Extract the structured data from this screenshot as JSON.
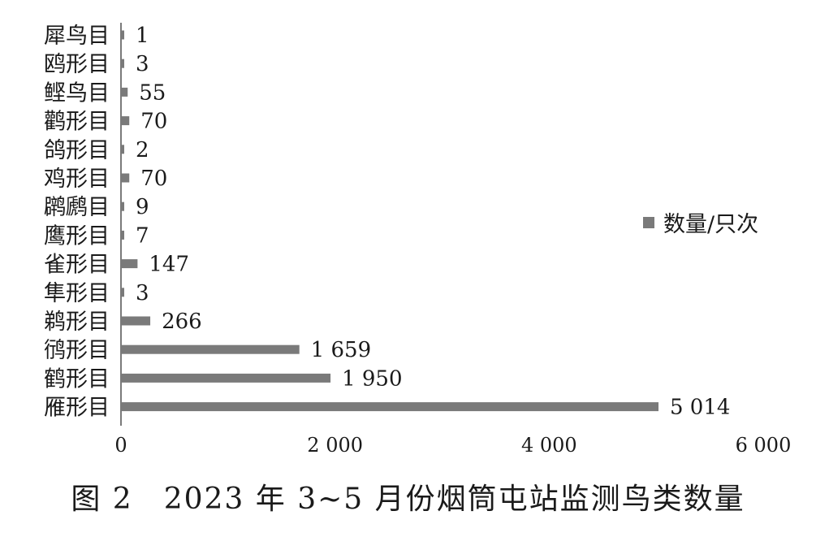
{
  "caption": "图 2　2023 年 3~5 月份烟筒屯站监测鸟类数量",
  "chart_data": {
    "type": "bar",
    "orientation": "horizontal",
    "categories": [
      "犀鸟目",
      "鸥形目",
      "鲣鸟目",
      "鹳形目",
      "鸽形目",
      "鸡形目",
      "䴙䴘目",
      "鹰形目",
      "雀形目",
      "隼形目",
      "鹈形目",
      "鸻形目",
      "鹤形目",
      "雁形目"
    ],
    "series": [
      {
        "name": "数量/只次",
        "values": [
          1,
          3,
          55,
          70,
          2,
          70,
          9,
          7,
          147,
          3,
          266,
          1659,
          1950,
          5014
        ],
        "value_labels": [
          "1",
          "3",
          "55",
          "70",
          "2",
          "70",
          "9",
          "7",
          "147",
          "3",
          "266",
          "1 659",
          "1 950",
          "5 014"
        ],
        "color": "#7a7a7a"
      }
    ],
    "xlim": [
      0,
      6000
    ],
    "xticks": [
      0,
      2000,
      4000,
      6000
    ],
    "xtick_labels": [
      "0",
      "2 000",
      "4 000",
      "6 000"
    ],
    "legend_position": "right",
    "grid": false
  }
}
